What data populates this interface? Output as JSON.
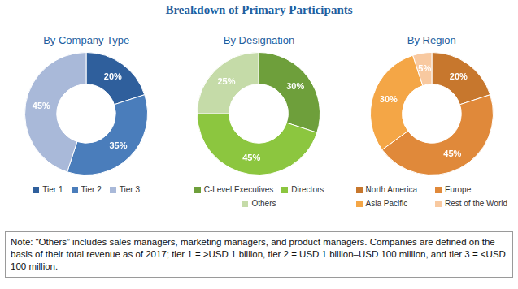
{
  "title": "Breakdown of Primary Participants",
  "chart_data": [
    {
      "type": "doughnut",
      "title": "By Company Type",
      "categories": [
        "Tier 1",
        "Tier 2",
        "Tier 3"
      ],
      "values": [
        20,
        35,
        45
      ],
      "value_labels": [
        "20%",
        "35%",
        "45%"
      ],
      "colors": [
        "#2f5f9c",
        "#4a7dbb",
        "#a9b9d9"
      ],
      "data_labels": true,
      "legend": "bottom"
    },
    {
      "type": "doughnut",
      "title": "By Designation",
      "categories": [
        "C-Level Executives",
        "Directors",
        "Others"
      ],
      "values": [
        30,
        45,
        25
      ],
      "value_labels": [
        "30%",
        "45%",
        "25%"
      ],
      "colors": [
        "#6e9f3b",
        "#8cc63f",
        "#c5dba8"
      ],
      "data_labels": true,
      "legend": "bottom"
    },
    {
      "type": "doughnut",
      "title": "By Region",
      "categories": [
        "North America",
        "Europe",
        "Asia Pacific",
        "Rest of the World"
      ],
      "values": [
        20,
        45,
        30,
        5
      ],
      "value_labels": [
        "20%",
        "45%",
        "30%",
        "5%"
      ],
      "colors": [
        "#c7772d",
        "#e0893a",
        "#f4a646",
        "#f8c9a0"
      ],
      "data_labels": true,
      "legend": "bottom"
    }
  ],
  "note": "Note: “Others” includes sales managers, marketing managers, and product managers. Companies are defined on the basis of their total revenue as of 2017; tier 1 = >USD 1 billion, tier 2 = USD 1 billion–USD 100 million, and tier 3 = <USD 100 million."
}
